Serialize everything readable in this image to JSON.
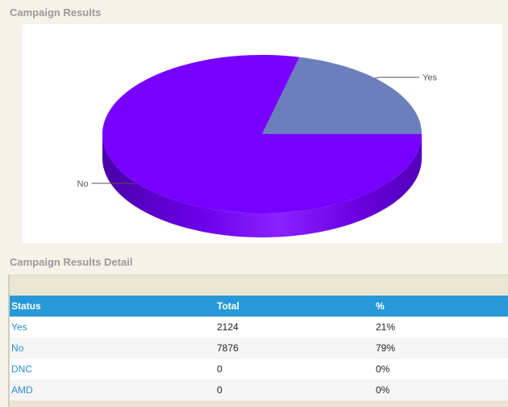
{
  "sections": {
    "results_title": "Campaign Results",
    "detail_title": "Campaign Results Detail"
  },
  "chart_data": {
    "type": "pie",
    "style": "3d",
    "slices": [
      {
        "label": "Yes",
        "value": 2124,
        "color": "#6b7fbd"
      },
      {
        "label": "No",
        "value": 7876,
        "color": "#7700ff"
      }
    ]
  },
  "table": {
    "headers": {
      "status": "Status",
      "total": "Total",
      "percent": "%"
    },
    "rows": [
      {
        "status": "Yes",
        "total": "2124",
        "percent": "21%"
      },
      {
        "status": "No",
        "total": "7876",
        "percent": "79%"
      },
      {
        "status": "DNC",
        "total": "0",
        "percent": "0%"
      },
      {
        "status": "AMD",
        "total": "0",
        "percent": "0%"
      }
    ]
  },
  "colors": {
    "header_bg": "#2899d8",
    "link": "#2a8fd0",
    "page_bg": "#f5f2ea"
  }
}
